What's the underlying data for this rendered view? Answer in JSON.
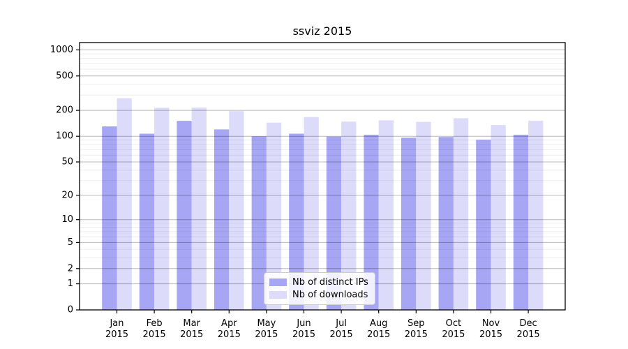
{
  "chart_data": {
    "type": "bar",
    "title": "ssviz 2015",
    "y_scale": "log1p",
    "grid": true,
    "legend_position": "lower center",
    "categories": [
      "Jan",
      "Feb",
      "Mar",
      "Apr",
      "May",
      "Jun",
      "Jul",
      "Aug",
      "Sep",
      "Oct",
      "Nov",
      "Dec"
    ],
    "category_year": "2015",
    "series": [
      {
        "name": "Nb of distinct IPs",
        "color": "#a6a6f4",
        "values": [
          130,
          107,
          151,
          120,
          100,
          107,
          99,
          104,
          96,
          98,
          91,
          104
        ]
      },
      {
        "name": "Nb of downloads",
        "color": "#dcdcfa",
        "values": [
          276,
          214,
          215,
          196,
          144,
          167,
          148,
          153,
          147,
          162,
          135,
          152
        ]
      }
    ],
    "yticks": [
      0,
      1,
      2,
      5,
      10,
      20,
      50,
      100,
      200,
      500,
      1000
    ],
    "minor_yticks": [
      3,
      4,
      6,
      7,
      8,
      9,
      30,
      40,
      60,
      70,
      80,
      90,
      300,
      400,
      600,
      700,
      800,
      900
    ],
    "ylim": [
      0,
      1215
    ]
  }
}
